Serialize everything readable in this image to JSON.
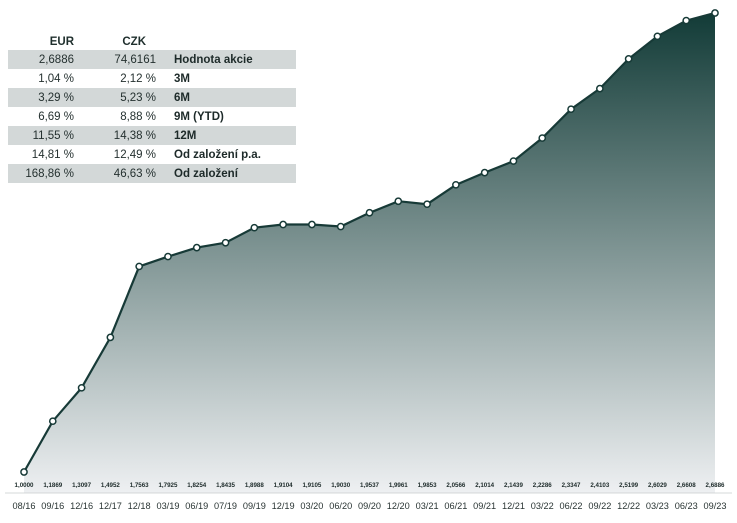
{
  "table": {
    "headers": {
      "eur": "EUR",
      "czk": "CZK"
    },
    "rows": [
      {
        "eur": "2,6886",
        "czk": "74,6161",
        "label": "Hodnota akcie"
      },
      {
        "eur": "1,04 %",
        "czk": "2,12 %",
        "label": "3M"
      },
      {
        "eur": "3,29 %",
        "czk": "5,23 %",
        "label": "6M"
      },
      {
        "eur": "6,69 %",
        "czk": "8,88 %",
        "label": "9M (YTD)"
      },
      {
        "eur": "11,55 %",
        "czk": "14,38 %",
        "label": "12M"
      },
      {
        "eur": "14,81 %",
        "czk": "12,49 %",
        "label": "Od založení p.a."
      },
      {
        "eur": "168,86 %",
        "czk": "46,63 %",
        "label": "Od založení"
      }
    ]
  },
  "chart_data": {
    "type": "area",
    "categories": [
      "08/16",
      "09/16",
      "12/16",
      "12/17",
      "12/18",
      "03/19",
      "06/19",
      "07/19",
      "09/19",
      "12/19",
      "03/20",
      "06/20",
      "09/20",
      "12/20",
      "03/21",
      "06/21",
      "09/21",
      "12/21",
      "03/22",
      "06/22",
      "09/22",
      "12/22",
      "03/23",
      "06/23",
      "09/23"
    ],
    "values": [
      1.0,
      1.1869,
      1.3097,
      1.4952,
      1.7563,
      1.7925,
      1.8254,
      1.8435,
      1.8988,
      1.9104,
      1.9105,
      1.903,
      1.9537,
      1.9961,
      1.9853,
      2.0566,
      2.1014,
      2.1439,
      2.2286,
      2.3347,
      2.4103,
      2.5199,
      2.6029,
      2.6608,
      2.6886
    ],
    "value_labels": [
      "1,0000",
      "1,1869",
      "1,3097",
      "1,4952",
      "1,7563",
      "1,7925",
      "1,8254",
      "1,8435",
      "1,8988",
      "1,9104",
      "1,9105",
      "1,9030",
      "1,9537",
      "1,9961",
      "1,9853",
      "2,0566",
      "2,1014",
      "2,1439",
      "2,2286",
      "2,3347",
      "2,4103",
      "2,5199",
      "2,6029",
      "2,6608",
      "2,6886"
    ],
    "ylim": [
      1.0,
      2.6886
    ],
    "grid": false,
    "colors": {
      "line": "#173a37",
      "fill_top": "#123b37",
      "fill_bottom": "#eef0f2",
      "marker_fill": "#ffffff"
    }
  }
}
